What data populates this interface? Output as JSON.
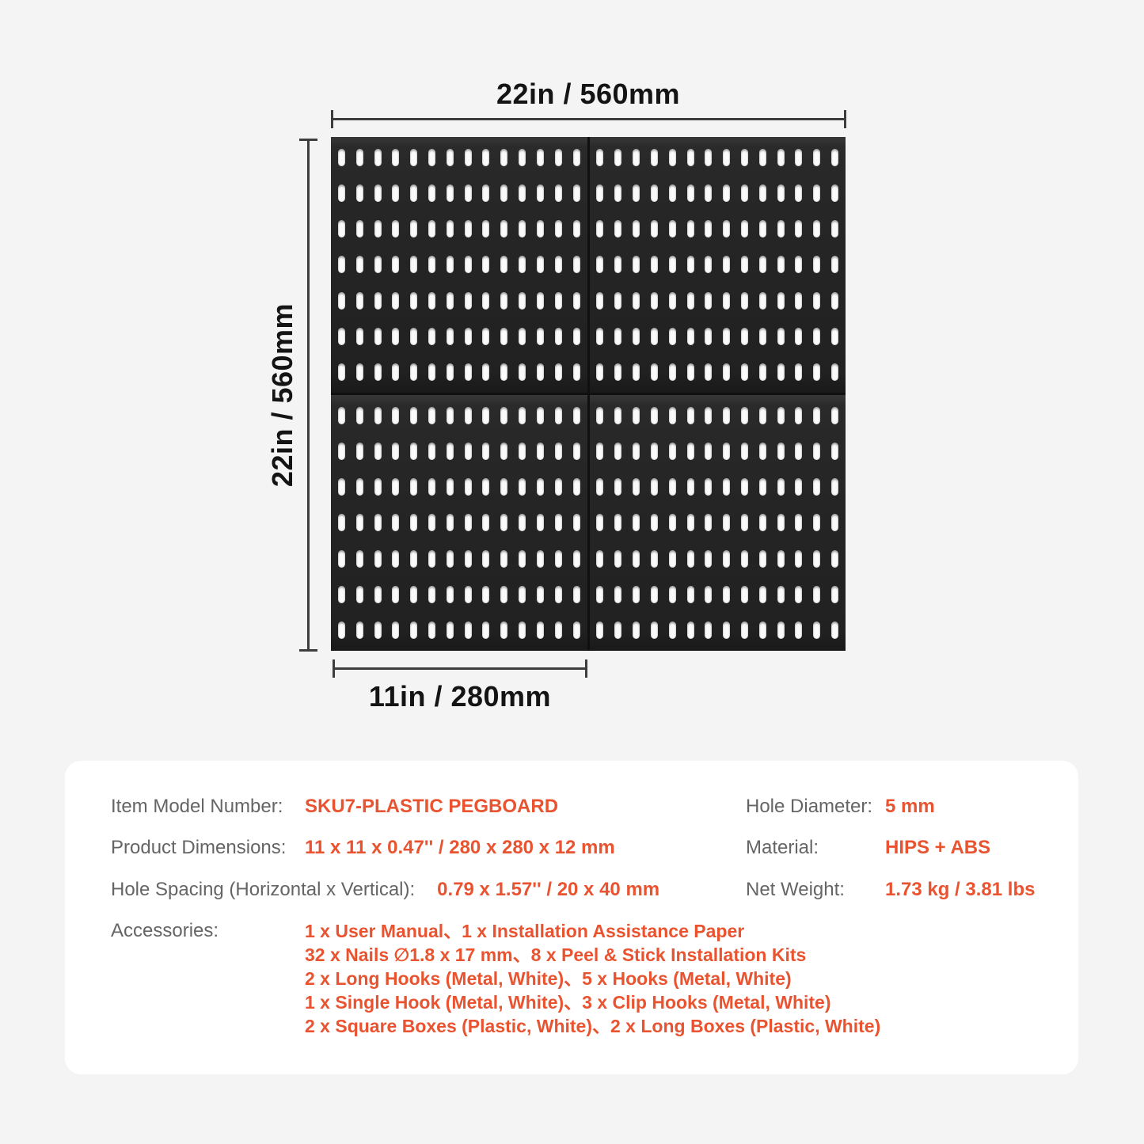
{
  "page": {
    "background": "#f4f4f4",
    "accent_color": "#e95330",
    "label_color": "#656565",
    "dim_color": "#3d3d3d"
  },
  "dimensions": {
    "top": "22in / 560mm",
    "left": "22in / 560mm",
    "bottom": "11in / 280mm"
  },
  "pegboard": {
    "panels": 4,
    "columns_per_panel": 14,
    "rows_per_panel": 7,
    "board_color": "#242424",
    "hole_color": "#fafafa"
  },
  "specs": {
    "left": [
      {
        "label": "Item Model Number:",
        "value": "SKU7-PLASTIC PEGBOARD"
      },
      {
        "label": "Product Dimensions:",
        "value": "11 x 11 x 0.47'' / 280 x 280 x 12 mm"
      },
      {
        "label": "Hole Spacing (Horizontal x Vertical):",
        "value": "0.79 x 1.57'' / 20 x 40 mm"
      },
      {
        "label": "Accessories:",
        "value_lines": [
          "1 x User Manual、1 x Installation Assistance Paper",
          "32 x Nails  ∅1.8 x 17 mm、8 x Peel & Stick Installation Kits",
          "2 x Long Hooks (Metal, White)、5 x Hooks (Metal, White)",
          "1 x Single Hook (Metal, White)、3 x Clip Hooks (Metal, White)",
          "2 x Square Boxes (Plastic, White)、2 x Long Boxes (Plastic, White)"
        ]
      }
    ],
    "right": [
      {
        "label": "Hole Diameter:",
        "value": "5 mm"
      },
      {
        "label": "Material:",
        "value": "HIPS + ABS"
      },
      {
        "label": "Net Weight:",
        "value": "1.73 kg / 3.81 lbs"
      }
    ]
  }
}
